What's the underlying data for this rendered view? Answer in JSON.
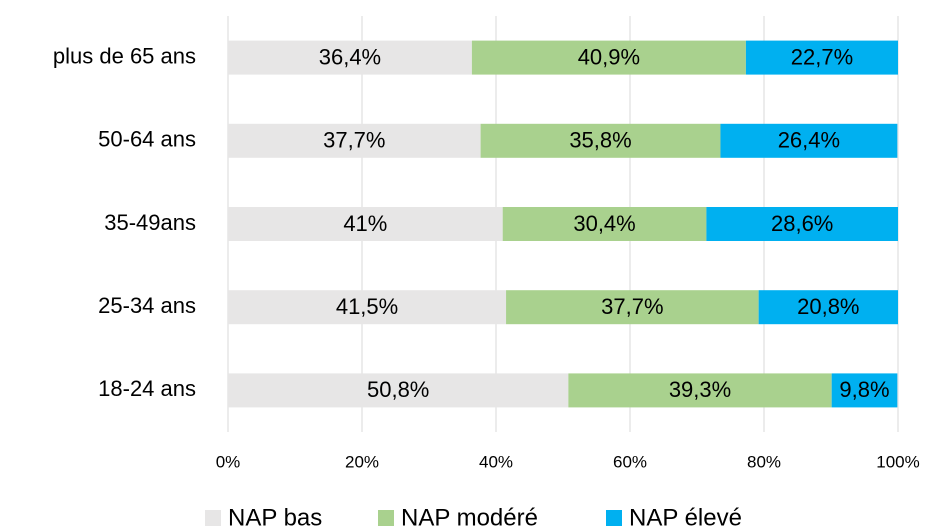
{
  "chart_data": {
    "type": "stacked-barh",
    "categories": [
      "plus de 65 ans",
      "50-64 ans",
      "35-49ans",
      "25-34 ans",
      "18-24 ans"
    ],
    "series": [
      {
        "name": "NAP bas",
        "color": "#e7e6e6",
        "values": [
          36.4,
          37.7,
          41,
          41.5,
          50.8
        ],
        "value_labels": [
          "36,4%",
          "37,7%",
          "41%",
          "41,5%",
          "50,8%"
        ]
      },
      {
        "name": "NAP modéré",
        "color": "#a9d18e",
        "values": [
          40.9,
          35.8,
          30.4,
          37.7,
          39.3
        ],
        "value_labels": [
          "40,9%",
          "35,8%",
          "30,4%",
          "37,7%",
          "39,3%"
        ]
      },
      {
        "name": "NAP élevé",
        "color": "#00b0f0",
        "values": [
          22.7,
          26.4,
          28.6,
          20.8,
          9.8
        ],
        "value_labels": [
          "22,7%",
          "26,4%",
          "28,6%",
          "20,8%",
          "9,8%"
        ]
      }
    ],
    "xlim": [
      0,
      100
    ],
    "xticks": [
      {
        "value": 0,
        "label": "0%"
      },
      {
        "value": 20,
        "label": "20%"
      },
      {
        "value": 40,
        "label": "40%"
      },
      {
        "value": 60,
        "label": "60%"
      },
      {
        "value": 80,
        "label": "80%"
      },
      {
        "value": 100,
        "label": "100%"
      }
    ],
    "grid": true,
    "legend": "bottom"
  }
}
